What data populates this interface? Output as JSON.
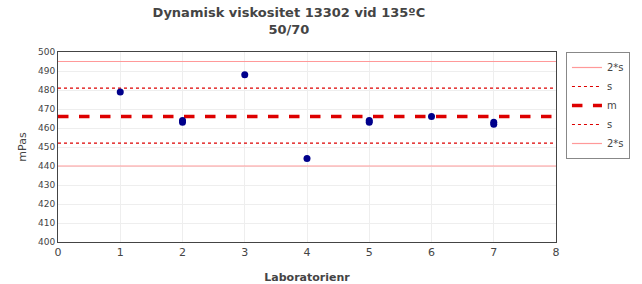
{
  "chart_data": {
    "type": "scatter",
    "title": "Dynamisk viskositet 13302 vid 135ºC\n50/70",
    "xlabel": "Laboratorienr",
    "ylabel": "mPas",
    "xlim": [
      0,
      8
    ],
    "ylim": [
      400,
      500
    ],
    "xticks": [
      0,
      1,
      2,
      3,
      4,
      5,
      6,
      7,
      8
    ],
    "yticks": [
      400,
      410,
      420,
      430,
      440,
      450,
      460,
      470,
      480,
      490,
      500
    ],
    "grid": true,
    "legend": "right",
    "series": [
      {
        "type": "scatter",
        "color": "#00008B",
        "marker": "circle",
        "x": [
          1,
          2,
          2,
          3,
          4,
          5,
          5,
          6,
          7,
          7
        ],
        "values": [
          479,
          464,
          463,
          488,
          444,
          464,
          463,
          466,
          463,
          462
        ]
      },
      {
        "name": "2*s",
        "type": "hline",
        "color": "#FF9999",
        "line_style": "solid",
        "values": [
          495
        ]
      },
      {
        "name": "s",
        "type": "hline",
        "color": "#DD0000",
        "line_style": "dotted",
        "values": [
          481
        ]
      },
      {
        "name": "m",
        "type": "hline",
        "color": "#DD0000",
        "line_style": "dashed",
        "values": [
          466
        ]
      },
      {
        "name": "s",
        "type": "hline",
        "color": "#DD0000",
        "line_style": "dotted",
        "values": [
          452
        ]
      },
      {
        "name": "2*s",
        "type": "hline",
        "color": "#FF9999",
        "line_style": "solid",
        "values": [
          440
        ]
      }
    ]
  }
}
